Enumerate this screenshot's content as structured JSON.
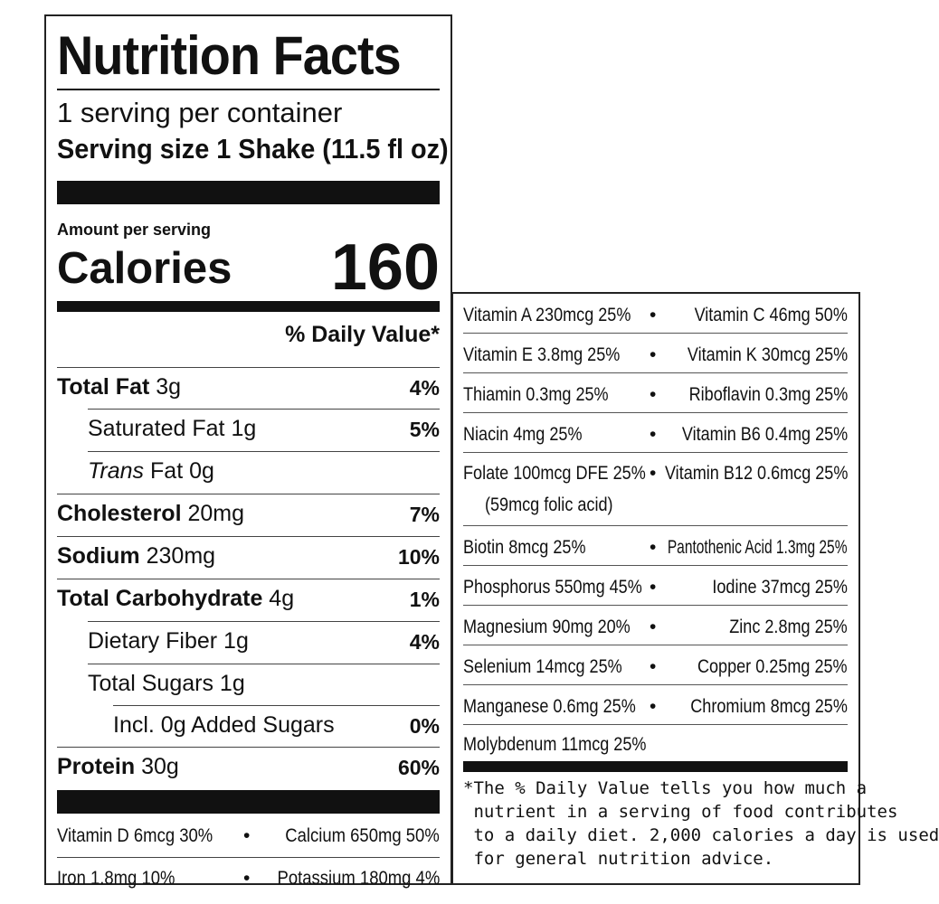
{
  "label": {
    "title": "Nutrition Facts",
    "servings_per_container": "1 serving per container",
    "serving_size": "Serving size 1 Shake (11.5 fl oz)",
    "amount_per_serving": "Amount per serving",
    "calories_label": "Calories",
    "calories_value": "160",
    "daily_value_header": "% Daily Value*"
  },
  "nutrients": [
    {
      "name": "Total Fat",
      "amount": "3g",
      "dv": "4%"
    },
    {
      "name": "Saturated Fat",
      "amount": "1g",
      "dv": "5%"
    },
    {
      "name": "Trans",
      "name_suffix": "Fat",
      "amount": "0g",
      "dv": ""
    },
    {
      "name": "Cholesterol",
      "amount": "20mg",
      "dv": "7%"
    },
    {
      "name": "Sodium",
      "amount": "230mg",
      "dv": "10%"
    },
    {
      "name": "Total Carbohydrate",
      "amount": "4g",
      "dv": "1%"
    },
    {
      "name": "Dietary Fiber",
      "amount": "1g",
      "dv": "4%"
    },
    {
      "name": "Total Sugars",
      "amount": "1g",
      "dv": ""
    },
    {
      "name": "Incl. 0g Added Sugars",
      "amount": "",
      "dv": "0%"
    },
    {
      "name": "Protein",
      "amount": "30g",
      "dv": "60%"
    }
  ],
  "minerals_left": [
    {
      "left": "Vitamin D 6mcg 30%",
      "right": "Calcium 650mg 50%"
    },
    {
      "left": "Iron 1.8mg 10%",
      "right": "Potassium 180mg 4%"
    }
  ],
  "bullet": "•",
  "vitamins": [
    {
      "left": "Vitamin A 230mcg 25%",
      "right": "Vitamin C 46mg 50%"
    },
    {
      "left": "Vitamin E 3.8mg 25%",
      "right": "Vitamin K 30mcg 25%"
    },
    {
      "left": "Thiamin 0.3mg 25%",
      "right": "Riboflavin 0.3mg 25%"
    },
    {
      "left": "Niacin 4mg 25%",
      "right": "Vitamin B6 0.4mg 25%"
    },
    {
      "left": "Folate 100mcg DFE 25%",
      "sub": "(59mcg folic acid)",
      "right": "Vitamin B12 0.6mcg 25%"
    },
    {
      "left": "Biotin 8mcg 25%",
      "right": "Pantothenic Acid 1.3mg 25%"
    },
    {
      "left": "Phosphorus 550mg 45%",
      "right": "Iodine 37mcg 25%"
    },
    {
      "left": "Magnesium 90mg 20%",
      "right": "Zinc 2.8mg 25%"
    },
    {
      "left": "Selenium 14mcg 25%",
      "right": "Copper 0.25mg 25%"
    },
    {
      "left": "Manganese 0.6mg 25%",
      "right": "Chromium 8mcg 25%"
    },
    {
      "left": "Molybdenum 11mcg 25%",
      "right": ""
    }
  ],
  "footnote": [
    "*The % Daily Value tells you how much a",
    " nutrient in a serving of food contributes",
    " to a daily diet. 2,000 calories a day is used",
    " for general nutrition advice."
  ]
}
